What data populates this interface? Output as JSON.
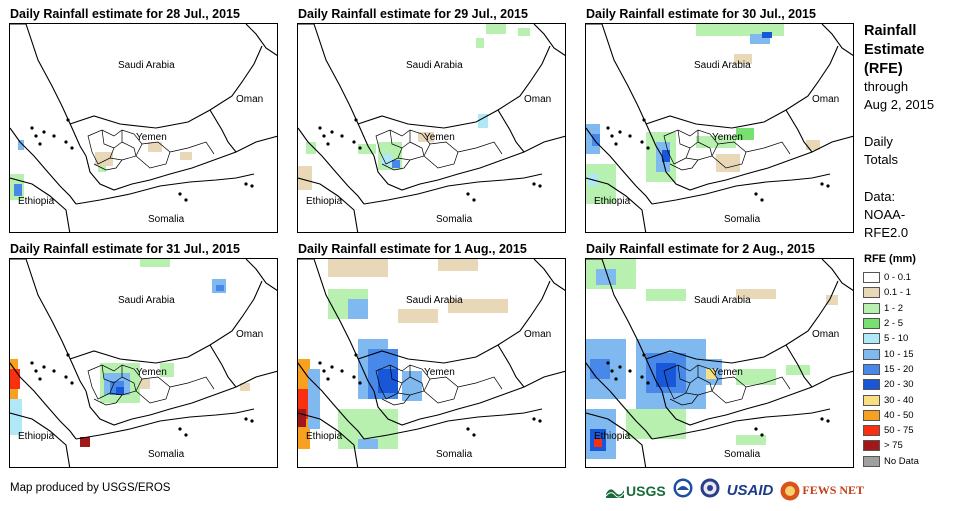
{
  "panels": [
    {
      "title": "Daily Rainfall estimate for 28 Jul., 2015"
    },
    {
      "title": "Daily Rainfall estimate for 29 Jul., 2015"
    },
    {
      "title": "Daily Rainfall estimate for 30 Jul., 2015"
    },
    {
      "title": "Daily Rainfall estimate for 31 Jul., 2015"
    },
    {
      "title": "Daily Rainfall estimate for 1 Aug., 2015"
    },
    {
      "title": "Daily Rainfall estimate for 2 Aug., 2015"
    }
  ],
  "country_labels": {
    "saudi": "Saudi Arabia",
    "oman": "Oman",
    "yemen": "Yemen",
    "ethiopia": "Ethiopia",
    "somalia": "Somalia"
  },
  "sidebar": {
    "title_lines": [
      "Rainfall",
      "Estimate",
      "(RFE)"
    ],
    "through_lines": [
      "through",
      "Aug 2, 2015"
    ],
    "totals_lines": [
      "Daily",
      "Totals"
    ],
    "data_lines": [
      "Data:",
      "NOAA-",
      "RFE2.0"
    ]
  },
  "legend": {
    "title": "RFE (mm)",
    "items": [
      {
        "label": "0 - 0.1",
        "color": "#ffffff"
      },
      {
        "label": "0.1 - 1",
        "color": "#e8d8b8"
      },
      {
        "label": "1 - 2",
        "color": "#b8f0b0"
      },
      {
        "label": "2 - 5",
        "color": "#78e070"
      },
      {
        "label": "5 - 10",
        "color": "#b0e8f8"
      },
      {
        "label": "10 - 15",
        "color": "#80b8f0"
      },
      {
        "label": "15 - 20",
        "color": "#4888e8"
      },
      {
        "label": "20 - 30",
        "color": "#1858d8"
      },
      {
        "label": "30 - 40",
        "color": "#f8e080"
      },
      {
        "label": "40 - 50",
        "color": "#f8a020"
      },
      {
        "label": "50 - 75",
        "color": "#f83010"
      },
      {
        "label": "> 75",
        "color": "#a01818"
      },
      {
        "label": "No Data",
        "color": "#a0a0a0"
      }
    ]
  },
  "footer": {
    "credit": "Map produced by USGS/EROS",
    "logos": [
      "USGS",
      "NOAA",
      "USAID",
      "FEWS NET"
    ]
  }
}
